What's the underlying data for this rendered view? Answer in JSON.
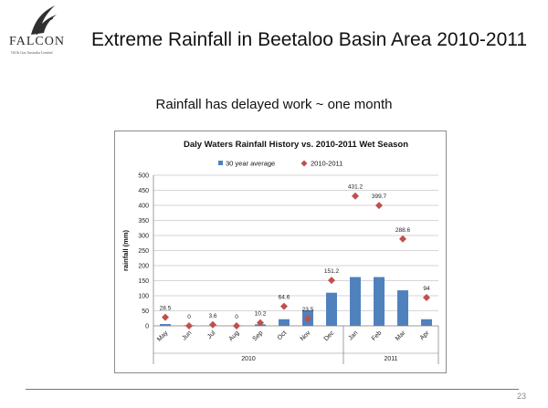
{
  "logo": {
    "name": "FALCON",
    "tagline": "Oil & Gas Australia Limited"
  },
  "slide": {
    "title": "Extreme Rainfall in Beetaloo Basin Area 2010-2011",
    "subtitle": "Rainfall has delayed work ~ one month",
    "page_number": "23"
  },
  "colors": {
    "bar": "#4f81bd",
    "marker": "#c0504d"
  },
  "chart_data": {
    "type": "bar",
    "title": "Daly Waters Rainfall History vs. 2010-2011 Wet Season",
    "ylabel": "rainfall (mm)",
    "xlabel": "",
    "ylim": [
      0,
      500
    ],
    "yticks": [
      0,
      50,
      100,
      150,
      200,
      250,
      300,
      350,
      400,
      450,
      500
    ],
    "grid": true,
    "legend_position": "top",
    "categories": [
      "May",
      "Jun",
      "Jul",
      "Aug",
      "Sep",
      "Oct",
      "Nov",
      "Dec",
      "Jan",
      "Feb",
      "Mar",
      "Apr"
    ],
    "groups": [
      {
        "label": "2010",
        "count": 8
      },
      {
        "label": "2011",
        "count": 4
      }
    ],
    "series": [
      {
        "name": "30 year average",
        "kind": "bar",
        "values": [
          6,
          2,
          1,
          1,
          5,
          22,
          52,
          110,
          162,
          162,
          118,
          22
        ]
      },
      {
        "name": "2010-2011",
        "kind": "marker",
        "values": [
          28.5,
          0,
          3.6,
          0,
          10.2,
          64.6,
          23.5,
          151.2,
          431.2,
          399.7,
          288.6,
          94
        ],
        "labels": [
          "28.5",
          "0",
          "3.6",
          "0",
          "10.2",
          "64.6",
          "23.5",
          "151.2",
          "431.2",
          "399.7",
          "288.6",
          "94"
        ]
      }
    ]
  }
}
